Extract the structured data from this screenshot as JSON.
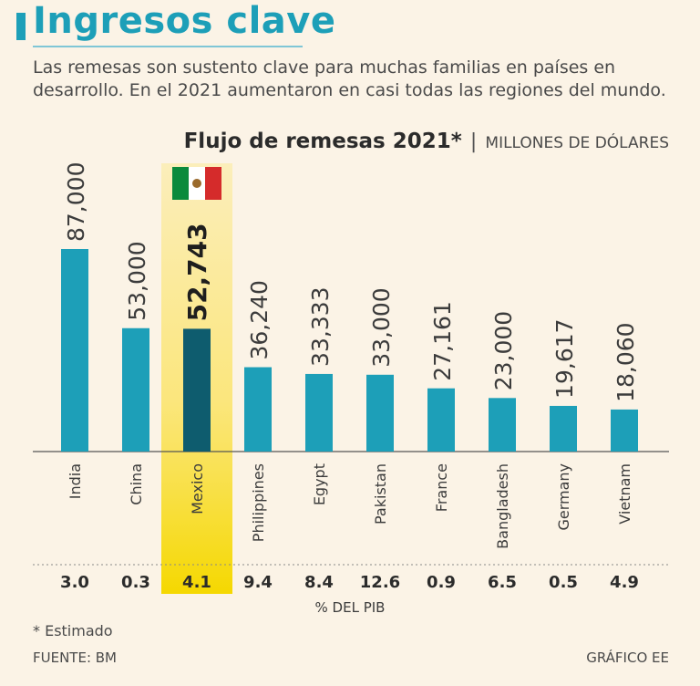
{
  "header": {
    "title": "Ingresos clave",
    "subtitle": "Las remesas son sustento clave para muchas familias en países en desarrollo. En el 2021 aumentaron en casi todas las regiones del mundo."
  },
  "chart_head": {
    "title": "Flujo de remesas 2021*",
    "separator": "|",
    "unit": "MILLONES DE DÓLARES"
  },
  "chart_data": {
    "type": "bar",
    "title": "Flujo de remesas 2021*",
    "ylabel": "MILLONES DE DÓLARES",
    "categories": [
      "India",
      "China",
      "Mexico",
      "Philippines",
      "Egypt",
      "Pakistan",
      "France",
      "Bangladesh",
      "Germany",
      "Vietnam"
    ],
    "values": [
      87000,
      53000,
      52743,
      36240,
      33333,
      33000,
      27161,
      23000,
      19617,
      18060
    ],
    "value_labels": [
      "87,000",
      "53,000",
      "52,743",
      "36,240",
      "33,333",
      "33,000",
      "27,161",
      "23,000",
      "19,617",
      "18,060"
    ],
    "pib": [
      "3.0",
      "0.3",
      "4.1",
      "9.4",
      "8.4",
      "12.6",
      "0.9",
      "6.5",
      "0.5",
      "4.9"
    ],
    "pib_label": "% DEL PIB",
    "highlight": "Mexico",
    "ylim": [
      0,
      87000
    ],
    "colors": {
      "bar": "#1d9fb8",
      "highlight_bar": "#0e5c6e",
      "highlight_band": "#fbe46a",
      "highlight_band_bottom": "#f5d800"
    }
  },
  "footer": {
    "footnote": "* Estimado",
    "source": "FUENTE: BM",
    "credit": "GRÁFICO EE"
  }
}
